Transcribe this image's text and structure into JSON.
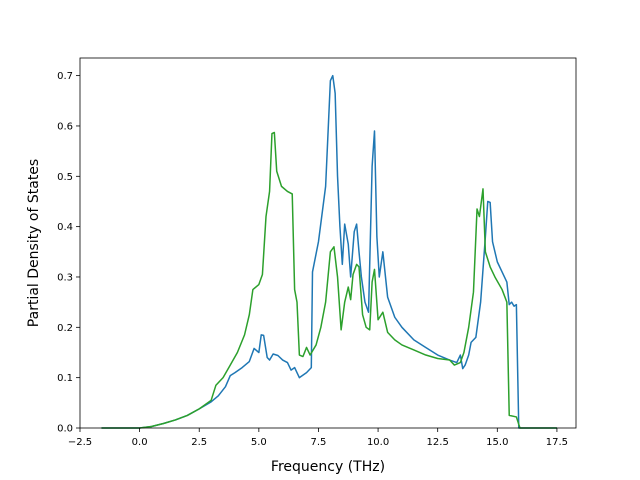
{
  "chart_data": {
    "type": "line",
    "xlabel": "Frequency (THz)",
    "ylabel": "Partial Density of States",
    "xlim": [
      -2.5,
      18.3
    ],
    "ylim": [
      0.0,
      0.735
    ],
    "grid": false,
    "x_ticks": [
      -2.5,
      0.0,
      2.5,
      5.0,
      7.5,
      10.0,
      12.5,
      15.0,
      17.5
    ],
    "x_tick_labels": [
      "−2.5",
      "0.0",
      "2.5",
      "5.0",
      "7.5",
      "10.0",
      "12.5",
      "15.0",
      "17.5"
    ],
    "y_ticks": [
      0.0,
      0.1,
      0.2,
      0.3,
      0.4,
      0.5,
      0.6,
      0.7
    ],
    "y_tick_labels": [
      "0.0",
      "0.1",
      "0.2",
      "0.3",
      "0.4",
      "0.5",
      "0.6",
      "0.7"
    ],
    "series": [
      {
        "color": "#1f77b4",
        "points": [
          [
            -1.6,
            0.0
          ],
          [
            0.0,
            0.0
          ],
          [
            0.5,
            0.003
          ],
          [
            1.0,
            0.009
          ],
          [
            1.5,
            0.016
          ],
          [
            2.0,
            0.025
          ],
          [
            2.5,
            0.038
          ],
          [
            3.0,
            0.052
          ],
          [
            3.3,
            0.064
          ],
          [
            3.6,
            0.082
          ],
          [
            3.8,
            0.104
          ],
          [
            4.0,
            0.11
          ],
          [
            4.3,
            0.12
          ],
          [
            4.6,
            0.132
          ],
          [
            4.8,
            0.158
          ],
          [
            5.0,
            0.15
          ],
          [
            5.1,
            0.185
          ],
          [
            5.2,
            0.184
          ],
          [
            5.35,
            0.14
          ],
          [
            5.45,
            0.135
          ],
          [
            5.6,
            0.147
          ],
          [
            5.8,
            0.144
          ],
          [
            6.0,
            0.135
          ],
          [
            6.2,
            0.13
          ],
          [
            6.35,
            0.115
          ],
          [
            6.5,
            0.12
          ],
          [
            6.7,
            0.1
          ],
          [
            7.0,
            0.11
          ],
          [
            7.2,
            0.12
          ],
          [
            7.25,
            0.31
          ],
          [
            7.5,
            0.37
          ],
          [
            7.8,
            0.48
          ],
          [
            8.0,
            0.69
          ],
          [
            8.1,
            0.7
          ],
          [
            8.2,
            0.665
          ],
          [
            8.3,
            0.5
          ],
          [
            8.4,
            0.4
          ],
          [
            8.5,
            0.325
          ],
          [
            8.6,
            0.405
          ],
          [
            8.75,
            0.365
          ],
          [
            8.85,
            0.3
          ],
          [
            9.0,
            0.39
          ],
          [
            9.1,
            0.405
          ],
          [
            9.2,
            0.35
          ],
          [
            9.3,
            0.3
          ],
          [
            9.45,
            0.25
          ],
          [
            9.6,
            0.23
          ],
          [
            9.75,
            0.52
          ],
          [
            9.85,
            0.59
          ],
          [
            9.95,
            0.38
          ],
          [
            10.05,
            0.3
          ],
          [
            10.2,
            0.35
          ],
          [
            10.4,
            0.26
          ],
          [
            10.7,
            0.22
          ],
          [
            11.0,
            0.2
          ],
          [
            11.5,
            0.175
          ],
          [
            12.0,
            0.16
          ],
          [
            12.5,
            0.145
          ],
          [
            13.0,
            0.135
          ],
          [
            13.3,
            0.13
          ],
          [
            13.45,
            0.145
          ],
          [
            13.55,
            0.118
          ],
          [
            13.65,
            0.125
          ],
          [
            13.8,
            0.145
          ],
          [
            13.9,
            0.17
          ],
          [
            14.1,
            0.18
          ],
          [
            14.3,
            0.25
          ],
          [
            14.5,
            0.38
          ],
          [
            14.6,
            0.45
          ],
          [
            14.7,
            0.448
          ],
          [
            14.8,
            0.37
          ],
          [
            15.0,
            0.33
          ],
          [
            15.2,
            0.31
          ],
          [
            15.4,
            0.29
          ],
          [
            15.5,
            0.245
          ],
          [
            15.6,
            0.25
          ],
          [
            15.7,
            0.242
          ],
          [
            15.8,
            0.245
          ],
          [
            15.9,
            0.0
          ],
          [
            17.5,
            0.0
          ]
        ]
      },
      {
        "color": "#2ca02c",
        "points": [
          [
            -1.6,
            0.0
          ],
          [
            0.0,
            0.0
          ],
          [
            0.5,
            0.003
          ],
          [
            1.0,
            0.009
          ],
          [
            1.5,
            0.016
          ],
          [
            2.0,
            0.025
          ],
          [
            2.5,
            0.038
          ],
          [
            3.0,
            0.055
          ],
          [
            3.2,
            0.085
          ],
          [
            3.5,
            0.1
          ],
          [
            3.8,
            0.125
          ],
          [
            4.1,
            0.15
          ],
          [
            4.4,
            0.185
          ],
          [
            4.6,
            0.225
          ],
          [
            4.75,
            0.275
          ],
          [
            5.0,
            0.285
          ],
          [
            5.15,
            0.305
          ],
          [
            5.3,
            0.42
          ],
          [
            5.45,
            0.47
          ],
          [
            5.55,
            0.585
          ],
          [
            5.65,
            0.587
          ],
          [
            5.75,
            0.51
          ],
          [
            5.95,
            0.48
          ],
          [
            6.2,
            0.47
          ],
          [
            6.4,
            0.465
          ],
          [
            6.5,
            0.275
          ],
          [
            6.6,
            0.25
          ],
          [
            6.7,
            0.145
          ],
          [
            6.85,
            0.142
          ],
          [
            7.0,
            0.16
          ],
          [
            7.15,
            0.145
          ],
          [
            7.4,
            0.165
          ],
          [
            7.6,
            0.2
          ],
          [
            7.8,
            0.25
          ],
          [
            8.0,
            0.35
          ],
          [
            8.15,
            0.36
          ],
          [
            8.3,
            0.3
          ],
          [
            8.45,
            0.195
          ],
          [
            8.6,
            0.25
          ],
          [
            8.75,
            0.28
          ],
          [
            8.85,
            0.255
          ],
          [
            8.95,
            0.305
          ],
          [
            9.1,
            0.325
          ],
          [
            9.2,
            0.32
          ],
          [
            9.35,
            0.225
          ],
          [
            9.5,
            0.2
          ],
          [
            9.65,
            0.195
          ],
          [
            9.75,
            0.29
          ],
          [
            9.85,
            0.315
          ],
          [
            10.0,
            0.215
          ],
          [
            10.2,
            0.23
          ],
          [
            10.4,
            0.19
          ],
          [
            10.7,
            0.175
          ],
          [
            11.0,
            0.165
          ],
          [
            11.5,
            0.155
          ],
          [
            12.0,
            0.145
          ],
          [
            12.5,
            0.138
          ],
          [
            13.0,
            0.135
          ],
          [
            13.2,
            0.125
          ],
          [
            13.45,
            0.13
          ],
          [
            13.6,
            0.15
          ],
          [
            13.8,
            0.2
          ],
          [
            14.0,
            0.27
          ],
          [
            14.15,
            0.435
          ],
          [
            14.25,
            0.42
          ],
          [
            14.4,
            0.475
          ],
          [
            14.5,
            0.35
          ],
          [
            14.7,
            0.32
          ],
          [
            14.9,
            0.3
          ],
          [
            15.2,
            0.275
          ],
          [
            15.4,
            0.25
          ],
          [
            15.5,
            0.025
          ],
          [
            15.8,
            0.022
          ],
          [
            15.95,
            0.0
          ],
          [
            17.5,
            0.0
          ]
        ]
      }
    ]
  }
}
